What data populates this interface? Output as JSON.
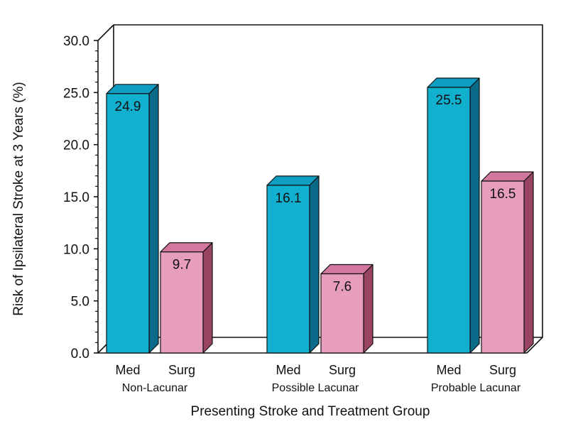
{
  "chart_data": {
    "type": "bar",
    "title": "",
    "xlabel": "Presenting Stroke and Treatment Group",
    "ylabel": "Risk of Ipsilateral Stroke at 3 Years (%)",
    "ylim": [
      0,
      30
    ],
    "yticks": [
      "0.0",
      "5.0",
      "10.0",
      "15.0",
      "20.0",
      "25.0",
      "30.0"
    ],
    "groups": [
      {
        "name": "Non-Lacunar",
        "bars": [
          {
            "label": "Med",
            "value": 24.9,
            "value_label": "24.9"
          },
          {
            "label": "Surg",
            "value": 9.7,
            "value_label": "9.7"
          }
        ]
      },
      {
        "name": "Possible Lacunar",
        "bars": [
          {
            "label": "Med",
            "value": 16.1,
            "value_label": "16.1"
          },
          {
            "label": "Surg",
            "value": 7.6,
            "value_label": "7.6"
          }
        ]
      },
      {
        "name": "Probable Lacunar",
        "bars": [
          {
            "label": "Med",
            "value": 25.5,
            "value_label": "25.5"
          },
          {
            "label": "Surg",
            "value": 16.5,
            "value_label": "16.5"
          }
        ]
      }
    ],
    "series_colors": {
      "Med": {
        "front": "#12b0cf",
        "top": "#0f9ec2",
        "side": "#0a6a8a"
      },
      "Surg": {
        "front": "#e79ebd",
        "top": "#d2779d",
        "side": "#9a4464"
      }
    },
    "grid": false,
    "style": "3d"
  }
}
